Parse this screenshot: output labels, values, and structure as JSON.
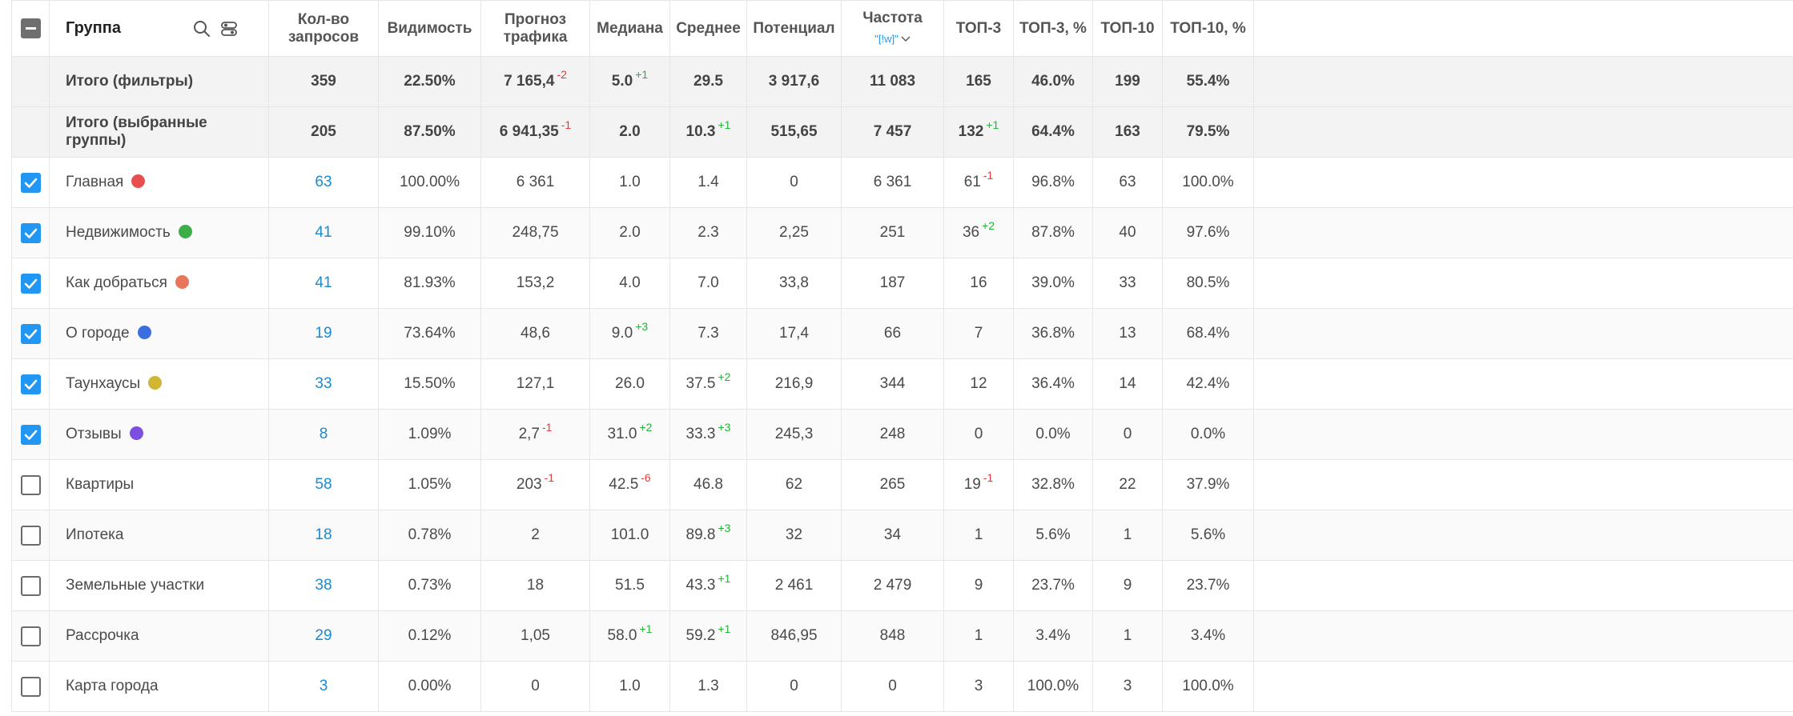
{
  "header": {
    "group": "Группа",
    "count": "Кол-во запросов",
    "visibility": "Видимость",
    "forecast": "Прогноз трафика",
    "median": "Медиана",
    "average": "Среднее",
    "potential": "Потенциал",
    "frequency": "Частота",
    "frequency_filter": "\"[!w]\"",
    "top3": "ТОП-3",
    "top3pct": "ТОП-3, %",
    "top10": "ТОП-10",
    "top10pct": "ТОП-10, %"
  },
  "icons": {
    "search": "search-icon",
    "settings": "filter-settings-icon",
    "chevron": "chevron-down-icon"
  },
  "colors": {
    "accent": "#2196f3",
    "link": "#1a8ad1",
    "positive": "#22b33a",
    "negative": "#e23b3b"
  },
  "totals": [
    {
      "name": "Итого (фильтры)",
      "count": "359",
      "visibility": "22.50%",
      "forecast": "7 165,4",
      "forecast_delta": "-2",
      "median": "5.0",
      "median_delta": "+1",
      "average": "29.5",
      "average_delta": "",
      "potential": "3 917,6",
      "frequency": "11 083",
      "top3": "165",
      "top3_delta": "",
      "top3pct": "46.0%",
      "top10": "199",
      "top10pct": "55.4%"
    },
    {
      "name": "Итого (выбранные группы)",
      "count": "205",
      "visibility": "87.50%",
      "forecast": "6 941,35",
      "forecast_delta": "-1",
      "median": "2.0",
      "median_delta": "",
      "average": "10.3",
      "average_delta": "+1",
      "potential": "515,65",
      "frequency": "7 457",
      "top3": "132",
      "top3_delta": "+1",
      "top3pct": "64.4%",
      "top10": "163",
      "top10pct": "79.5%"
    }
  ],
  "rows": [
    {
      "name": "Главная",
      "checked": true,
      "color": "#e84e4e",
      "count": "63",
      "visibility": "100.00%",
      "forecast": "6 361",
      "forecast_delta": "",
      "median": "1.0",
      "median_delta": "",
      "average": "1.4",
      "average_delta": "",
      "potential": "0",
      "frequency": "6 361",
      "top3": "61",
      "top3_delta": "-1",
      "top3pct": "96.8%",
      "top10": "63",
      "top10pct": "100.0%"
    },
    {
      "name": "Недвижимость",
      "checked": true,
      "color": "#3dae4a",
      "count": "41",
      "visibility": "99.10%",
      "forecast": "248,75",
      "forecast_delta": "",
      "median": "2.0",
      "median_delta": "",
      "average": "2.3",
      "average_delta": "",
      "potential": "2,25",
      "frequency": "251",
      "top3": "36",
      "top3_delta": "+2",
      "top3pct": "87.8%",
      "top10": "40",
      "top10pct": "97.6%"
    },
    {
      "name": "Как добраться",
      "checked": true,
      "color": "#e8765a",
      "count": "41",
      "visibility": "81.93%",
      "forecast": "153,2",
      "forecast_delta": "",
      "median": "4.0",
      "median_delta": "",
      "average": "7.0",
      "average_delta": "",
      "potential": "33,8",
      "frequency": "187",
      "top3": "16",
      "top3_delta": "",
      "top3pct": "39.0%",
      "top10": "33",
      "top10pct": "80.5%"
    },
    {
      "name": "О городе",
      "checked": true,
      "color": "#3b6fe0",
      "count": "19",
      "visibility": "73.64%",
      "forecast": "48,6",
      "forecast_delta": "",
      "median": "9.0",
      "median_delta": "+3",
      "average": "7.3",
      "average_delta": "",
      "potential": "17,4",
      "frequency": "66",
      "top3": "7",
      "top3_delta": "",
      "top3pct": "36.8%",
      "top10": "13",
      "top10pct": "68.4%"
    },
    {
      "name": "Таунхаусы",
      "checked": true,
      "color": "#d1b534",
      "count": "33",
      "visibility": "15.50%",
      "forecast": "127,1",
      "forecast_delta": "",
      "median": "26.0",
      "median_delta": "",
      "average": "37.5",
      "average_delta": "+2",
      "potential": "216,9",
      "frequency": "344",
      "top3": "12",
      "top3_delta": "",
      "top3pct": "36.4%",
      "top10": "14",
      "top10pct": "42.4%"
    },
    {
      "name": "Отзывы",
      "checked": true,
      "color": "#7b4fe0",
      "count": "8",
      "visibility": "1.09%",
      "forecast": "2,7",
      "forecast_delta": "-1",
      "median": "31.0",
      "median_delta": "+2",
      "average": "33.3",
      "average_delta": "+3",
      "potential": "245,3",
      "frequency": "248",
      "top3": "0",
      "top3_delta": "",
      "top3pct": "0.0%",
      "top10": "0",
      "top10pct": "0.0%"
    },
    {
      "name": "Квартиры",
      "checked": false,
      "color": "",
      "count": "58",
      "visibility": "1.05%",
      "forecast": "203",
      "forecast_delta": "-1",
      "median": "42.5",
      "median_delta": "-6",
      "average": "46.8",
      "average_delta": "",
      "potential": "62",
      "frequency": "265",
      "top3": "19",
      "top3_delta": "-1",
      "top3pct": "32.8%",
      "top10": "22",
      "top10pct": "37.9%"
    },
    {
      "name": "Ипотека",
      "checked": false,
      "color": "",
      "count": "18",
      "visibility": "0.78%",
      "forecast": "2",
      "forecast_delta": "",
      "median": "101.0",
      "median_delta": "",
      "average": "89.8",
      "average_delta": "+3",
      "potential": "32",
      "frequency": "34",
      "top3": "1",
      "top3_delta": "",
      "top3pct": "5.6%",
      "top10": "1",
      "top10pct": "5.6%"
    },
    {
      "name": "Земельные участки",
      "checked": false,
      "color": "",
      "count": "38",
      "visibility": "0.73%",
      "forecast": "18",
      "forecast_delta": "",
      "median": "51.5",
      "median_delta": "",
      "average": "43.3",
      "average_delta": "+1",
      "potential": "2 461",
      "frequency": "2 479",
      "top3": "9",
      "top3_delta": "",
      "top3pct": "23.7%",
      "top10": "9",
      "top10pct": "23.7%"
    },
    {
      "name": "Рассрочка",
      "checked": false,
      "color": "",
      "count": "29",
      "visibility": "0.12%",
      "forecast": "1,05",
      "forecast_delta": "",
      "median": "58.0",
      "median_delta": "+1",
      "average": "59.2",
      "average_delta": "+1",
      "potential": "846,95",
      "frequency": "848",
      "top3": "1",
      "top3_delta": "",
      "top3pct": "3.4%",
      "top10": "1",
      "top10pct": "3.4%"
    },
    {
      "name": "Карта города",
      "checked": false,
      "color": "",
      "count": "3",
      "visibility": "0.00%",
      "forecast": "0",
      "forecast_delta": "",
      "median": "1.0",
      "median_delta": "",
      "average": "1.3",
      "average_delta": "",
      "potential": "0",
      "frequency": "0",
      "top3": "3",
      "top3_delta": "",
      "top3pct": "100.0%",
      "top10": "3",
      "top10pct": "100.0%"
    }
  ]
}
